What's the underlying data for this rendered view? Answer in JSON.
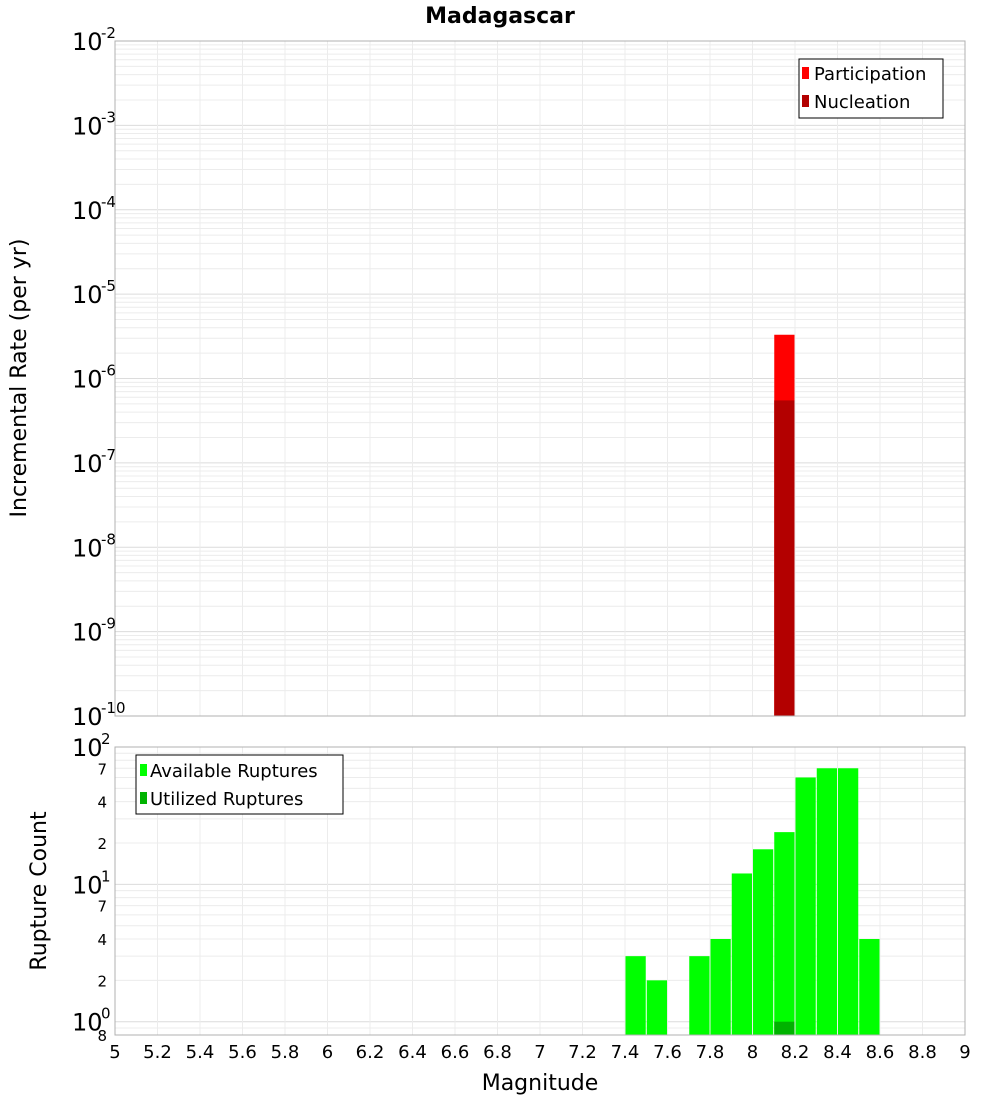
{
  "chart_data": [
    {
      "type": "bar",
      "title": "Madagascar",
      "xlabel": "Magnitude",
      "ylabel": "Incremental Rate (per yr)",
      "xlim": [
        5,
        9
      ],
      "ylim": [
        1e-10,
        0.01
      ],
      "yscale": "log",
      "grid": true,
      "legend_position": "top-right",
      "y_tick_exponents": [
        "-2",
        "-3",
        "-4",
        "-5",
        "-6",
        "-7",
        "-8",
        "-9",
        "-10"
      ],
      "series": [
        {
          "name": "Participation",
          "color": "#ff0000",
          "x": [
            8.15
          ],
          "values": [
            3.3e-06
          ]
        },
        {
          "name": "Nucleation",
          "color": "#b30000",
          "x": [
            8.15
          ],
          "values": [
            5.5e-07
          ]
        }
      ]
    },
    {
      "type": "bar",
      "xlabel": "Magnitude",
      "ylabel": "Rupture Count",
      "xlim": [
        5,
        9
      ],
      "ylim": [
        0.8,
        100
      ],
      "yscale": "log",
      "grid": true,
      "legend_position": "top-left",
      "x_ticks": [
        "5",
        "5.2",
        "5.4",
        "5.6",
        "5.8",
        "6",
        "6.2",
        "6.4",
        "6.6",
        "6.8",
        "7",
        "7.2",
        "7.4",
        "7.6",
        "7.8",
        "8",
        "8.2",
        "8.4",
        "8.6",
        "8.8",
        "9"
      ],
      "y_major_ticks": [
        {
          "value": 100,
          "base": "10",
          "exp": "2"
        },
        {
          "value": 10,
          "base": "10",
          "exp": "1"
        },
        {
          "value": 1,
          "base": "10",
          "exp": "0"
        }
      ],
      "y_minor_ticks": [
        {
          "value": 70,
          "label": "7"
        },
        {
          "value": 40,
          "label": "4"
        },
        {
          "value": 20,
          "label": "2"
        },
        {
          "value": 7,
          "label": "7"
        },
        {
          "value": 4,
          "label": "4"
        },
        {
          "value": 2,
          "label": "2"
        },
        {
          "value": 0.8,
          "label": "8"
        }
      ],
      "series": [
        {
          "name": "Available Ruptures",
          "color": "#00ff00",
          "x": [
            7.45,
            7.55,
            7.75,
            7.85,
            7.95,
            8.05,
            8.15,
            8.25,
            8.35,
            8.45,
            8.55
          ],
          "values": [
            3,
            2,
            3,
            4,
            12,
            18,
            24,
            60,
            70,
            70,
            4
          ]
        },
        {
          "name": "Utilized Ruptures",
          "color": "#00b300",
          "x": [
            8.15
          ],
          "values": [
            1
          ]
        }
      ]
    }
  ]
}
